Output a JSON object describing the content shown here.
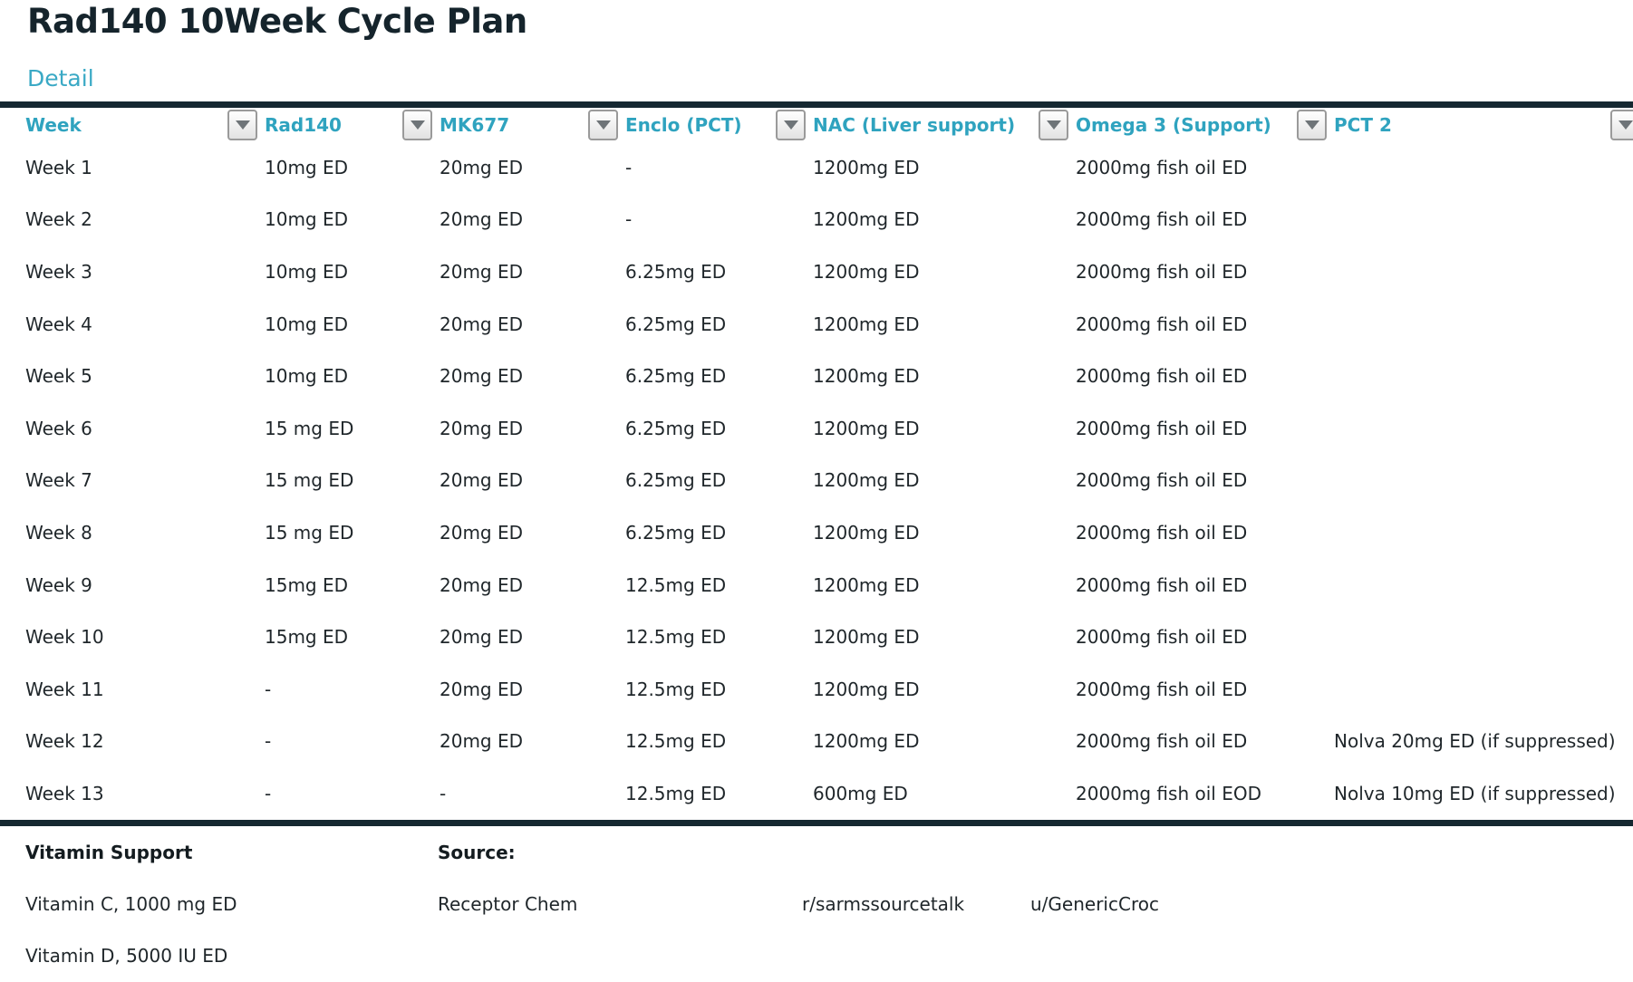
{
  "page": {
    "title": "Rad140 10Week Cycle Plan",
    "tab_label": "Detail"
  },
  "colors": {
    "accent_teal": "#2fa3bf",
    "rule_dark": "#152831",
    "body_text": "#1f262a"
  },
  "table": {
    "columns": [
      {
        "label": "Week"
      },
      {
        "label": "Rad140"
      },
      {
        "label": "MK677"
      },
      {
        "label": "Enclo (PCT)"
      },
      {
        "label": "NAC (Liver support)"
      },
      {
        "label": "Omega 3 (Support)"
      },
      {
        "label": "PCT 2"
      }
    ],
    "filter_icon": "chevron-down-icon",
    "rows": [
      [
        "Week 1",
        "10mg ED",
        "20mg ED",
        "-",
        "1200mg ED",
        "2000mg fish oil ED",
        ""
      ],
      [
        "Week 2",
        "10mg ED",
        "20mg ED",
        "-",
        "1200mg ED",
        "2000mg fish oil ED",
        ""
      ],
      [
        "Week 3",
        "10mg ED",
        "20mg ED",
        "6.25mg ED",
        "1200mg ED",
        "2000mg fish oil ED",
        ""
      ],
      [
        "Week 4",
        "10mg ED",
        "20mg ED",
        "6.25mg ED",
        "1200mg ED",
        "2000mg fish oil ED",
        ""
      ],
      [
        "Week 5",
        "10mg ED",
        "20mg ED",
        "6.25mg ED",
        "1200mg ED",
        "2000mg fish oil ED",
        ""
      ],
      [
        "Week 6",
        "15 mg ED",
        "20mg ED",
        "6.25mg ED",
        "1200mg ED",
        "2000mg fish oil ED",
        ""
      ],
      [
        "Week 7",
        "15 mg ED",
        "20mg ED",
        "6.25mg ED",
        "1200mg ED",
        "2000mg fish oil ED",
        ""
      ],
      [
        "Week 8",
        "15 mg ED",
        "20mg ED",
        "6.25mg ED",
        "1200mg ED",
        "2000mg fish oil ED",
        ""
      ],
      [
        "Week 9",
        "15mg ED",
        "20mg ED",
        "12.5mg ED",
        "1200mg ED",
        "2000mg fish oil ED",
        ""
      ],
      [
        "Week 10",
        "15mg ED",
        "20mg ED",
        "12.5mg ED",
        "1200mg ED",
        "2000mg fish oil ED",
        ""
      ],
      [
        "Week 11",
        "-",
        "20mg ED",
        "12.5mg ED",
        "1200mg ED",
        "2000mg fish oil ED",
        ""
      ],
      [
        "Week 12",
        "-",
        "20mg ED",
        "12.5mg ED",
        "1200mg ED",
        "2000mg fish oil ED",
        "Nolva 20mg ED (if suppressed)"
      ],
      [
        "Week 13",
        "-",
        "-",
        "12.5mg ED",
        "600mg ED",
        "2000mg fish oil EOD",
        "Nolva 10mg ED (if suppressed)"
      ]
    ]
  },
  "footer": {
    "vitamin_header": "Vitamin Support",
    "source_header": "Source:",
    "vitamins": [
      "Vitamin C, 1000 mg ED",
      "Vitamin D, 5000 IU ED"
    ],
    "source_name": "Receptor Chem",
    "source_links": [
      "r/sarmssourcetalk",
      "u/GenericCroc"
    ]
  }
}
